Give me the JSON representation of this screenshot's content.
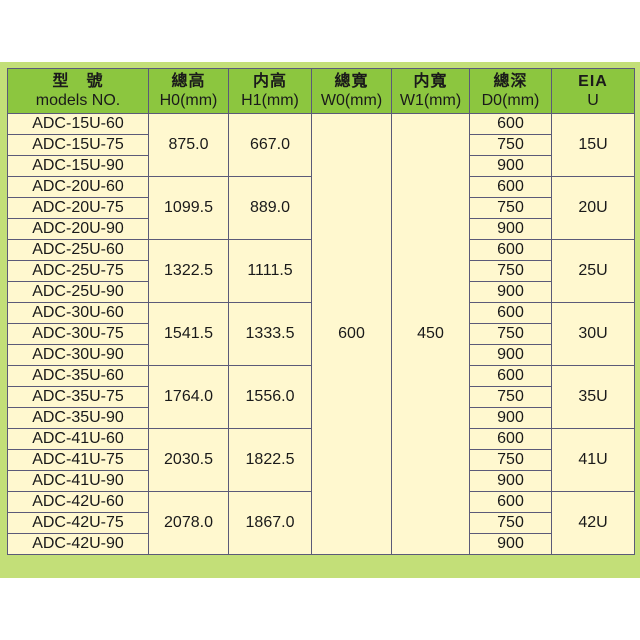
{
  "headers": [
    {
      "zh": "型　號",
      "en": "models NO."
    },
    {
      "zh": "總高",
      "en": "H0(mm)"
    },
    {
      "zh": "内高",
      "en": "H1(mm)"
    },
    {
      "zh": "總寬",
      "en": "W0(mm)"
    },
    {
      "zh": "内寬",
      "en": "W1(mm)"
    },
    {
      "zh": "總深",
      "en": "D0(mm)"
    },
    {
      "zh": "EIA",
      "en": "U"
    }
  ],
  "w0": "600",
  "w1": "450",
  "groups": [
    {
      "models": [
        "ADC-15U-60",
        "ADC-15U-75",
        "ADC-15U-90"
      ],
      "h0": "875.0",
      "h1": "667.0",
      "depths": [
        "600",
        "750",
        "900"
      ],
      "eia": "15U"
    },
    {
      "models": [
        "ADC-20U-60",
        "ADC-20U-75",
        "ADC-20U-90"
      ],
      "h0": "1099.5",
      "h1": "889.0",
      "depths": [
        "600",
        "750",
        "900"
      ],
      "eia": "20U"
    },
    {
      "models": [
        "ADC-25U-60",
        "ADC-25U-75",
        "ADC-25U-90"
      ],
      "h0": "1322.5",
      "h1": "1111.5",
      "depths": [
        "600",
        "750",
        "900"
      ],
      "eia": "25U"
    },
    {
      "models": [
        "ADC-30U-60",
        "ADC-30U-75",
        "ADC-30U-90"
      ],
      "h0": "1541.5",
      "h1": "1333.5",
      "depths": [
        "600",
        "750",
        "900"
      ],
      "eia": "30U"
    },
    {
      "models": [
        "ADC-35U-60",
        "ADC-35U-75",
        "ADC-35U-90"
      ],
      "h0": "1764.0",
      "h1": "1556.0",
      "depths": [
        "600",
        "750",
        "900"
      ],
      "eia": "35U"
    },
    {
      "models": [
        "ADC-41U-60",
        "ADC-41U-75",
        "ADC-41U-90"
      ],
      "h0": "2030.5",
      "h1": "1822.5",
      "depths": [
        "600",
        "750",
        "900"
      ],
      "eia": "41U"
    },
    {
      "models": [
        "ADC-42U-60",
        "ADC-42U-75",
        "ADC-42U-90"
      ],
      "h0": "2078.0",
      "h1": "1867.0",
      "depths": [
        "600",
        "750",
        "900"
      ],
      "eia": "42U"
    }
  ]
}
